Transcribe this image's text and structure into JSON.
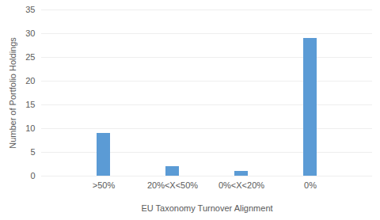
{
  "chart_data": {
    "type": "bar",
    "xlabel": "EU Taxonomy Turnover Alignment",
    "ylabel": "Number of Portfolio Holdings",
    "categories": [
      ">50%",
      "20%<X<50%",
      "0%<X<20%",
      "0%"
    ],
    "values": [
      9,
      2,
      1,
      29
    ],
    "color": "#5b9bd5",
    "ylim": [
      0,
      35
    ],
    "yticks": [
      0,
      5,
      10,
      15,
      20,
      25,
      30,
      35
    ],
    "grid": true
  }
}
